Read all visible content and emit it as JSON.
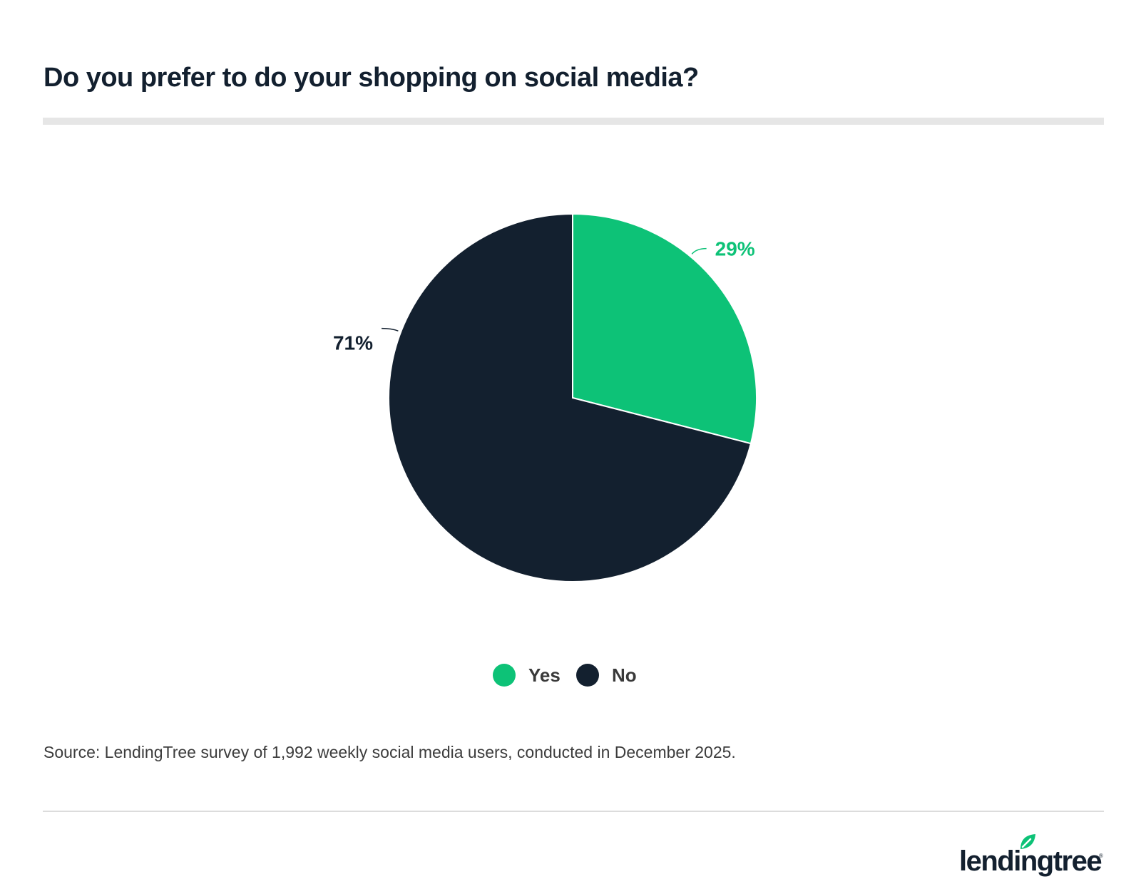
{
  "title": "Do you prefer to do your shopping on social media?",
  "source": "Source: LendingTree survey of 1,992 weekly social media users, conducted in December 2025.",
  "brand": {
    "logo_text": "lendingtree",
    "registered_mark": "®"
  },
  "colors": {
    "yes": "#0dc277",
    "no": "#13202f"
  },
  "chart_data": {
    "type": "pie",
    "title": "Do you prefer to do your shopping on social media?",
    "slices": [
      {
        "label": "Yes",
        "value": 29,
        "display": "29%",
        "color": "#0dc277"
      },
      {
        "label": "No",
        "value": 71,
        "display": "71%",
        "color": "#13202f"
      }
    ],
    "legend": {
      "placement": "bottom-center",
      "entries": [
        "Yes",
        "No"
      ]
    }
  }
}
